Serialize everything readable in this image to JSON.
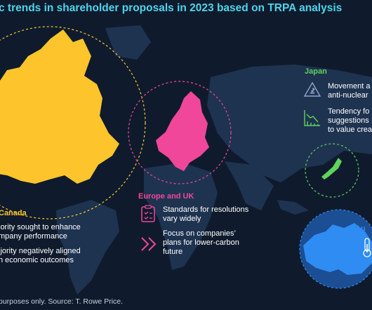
{
  "title": "c trends in shareholder proposals in 2023 based on TRPA analysis",
  "source": "purposes only. Source: T. Rowe Price.",
  "colors": {
    "background": "#0f1b2d",
    "landmass": "#1e3350",
    "title": "#4fd3ea",
    "north_america": "#fdc52b",
    "europe": "#f0479a",
    "japan": "#5fd35a",
    "australia": "#2f8cf2",
    "icon_stroke": "#8fa6c4"
  },
  "regions": {
    "canada": {
      "label": "Canada",
      "items": [
        [
          "jority sought to enhance",
          "mpany performance"
        ],
        [
          "ijority negatively aligned",
          "h economic outcomes"
        ]
      ]
    },
    "europe": {
      "label": "Europe and UK",
      "items": [
        [
          "Standards for resolutions",
          "vary widely"
        ],
        [
          "Focus on companies’",
          "plans for lower-carbon",
          "future"
        ]
      ]
    },
    "japan": {
      "label": "Japan",
      "items": [
        [
          "Movement a",
          "anti-nuclear"
        ],
        [
          "Tendency fo",
          "suggestions",
          "to value crea"
        ]
      ]
    },
    "australia": {
      "label": "Au"
    }
  },
  "icons": [
    "nuclear-icon",
    "declining-chart-icon",
    "checklist-icon",
    "double-chevron-icon",
    "thermometer-icon"
  ]
}
